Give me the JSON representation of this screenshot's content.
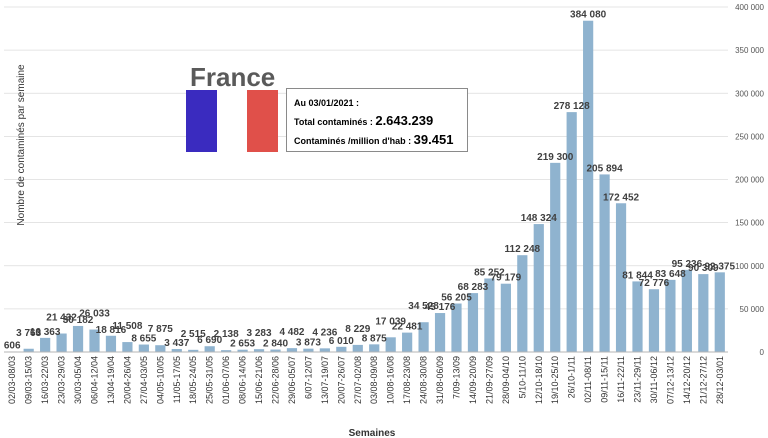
{
  "header": {
    "country": "France"
  },
  "info_box": {
    "date_line": "Au 03/01/2021 :",
    "total_label": "Total contaminés : ",
    "total_value": "2.643.239",
    "per_million_label": "Contaminés /million d'hab : ",
    "per_million_value": "39.451"
  },
  "colors": {
    "bar": "#8fb3cf",
    "flag_blue": "#3a2bbf",
    "flag_red": "#e0504a"
  },
  "chart_data": {
    "type": "bar",
    "title": "",
    "xlabel": "Semaines",
    "ylabel": "Nombre de contaminés par semaine",
    "ylim": [
      0,
      400000
    ],
    "yticks": [
      "0",
      "50 000",
      "100 000",
      "150 000",
      "200 000",
      "250 000",
      "300 000",
      "350 000",
      "400 000"
    ],
    "categories": [
      "02/03-08/03",
      "09/03-15/03",
      "16/03-22/03",
      "23/03-29/03",
      "30/03-05/04",
      "06/04-12/04",
      "13/04-19/04",
      "20/04-26/04",
      "27/04-03/05",
      "04/05-10/05",
      "11/05-17/05",
      "18/05-24/05",
      "25/05-31/05",
      "01/06-07/06",
      "08/06-14/06",
      "15/06-21/06",
      "22/06-28/06",
      "29/06-05/07",
      "6/07-12/07",
      "13/07-19/07",
      "20/07-26/07",
      "27/07-02/08",
      "03/08-09/08",
      "10/08-16/08",
      "17/08-23/08",
      "24/08-30/08",
      "31/08-06/09",
      "7/09-13/09",
      "14/09-20/09",
      "21/09-27/09",
      "28/09-04/10",
      "5/10-11/10",
      "12/10-18/10",
      "19/10-25/10",
      "26/10-1/11",
      "02/11-08/11",
      "09/11-15/11",
      "16/11-22/11",
      "23/11-29/11",
      "30/11-06/12",
      "07/12-13/12",
      "14/12-20/12",
      "21/12-27/12",
      "28/12-03/01"
    ],
    "values": [
      606,
      3763,
      16363,
      21432,
      30182,
      26033,
      18816,
      11508,
      8655,
      7875,
      3437,
      2515,
      6690,
      2138,
      2653,
      3283,
      2840,
      4482,
      3873,
      4236,
      6010,
      8229,
      8875,
      17039,
      22481,
      34528,
      45176,
      56205,
      68283,
      85252,
      79179,
      112248,
      148324,
      219300,
      278128,
      384080,
      205894,
      172452,
      81844,
      72776,
      83648,
      95236,
      90309,
      92375
    ],
    "data_labels": [
      "606",
      "3 763",
      "16 363",
      "21 432",
      "30 182",
      "26 033",
      "18 816",
      "11 508",
      "8 655",
      "7 875",
      "3 437",
      "2 515",
      "6 690",
      "2 138",
      "2 653",
      "3 283",
      "2 840",
      "4 482",
      "3 873",
      "4 236",
      "6 010",
      "8 229",
      "8 875",
      "17 039",
      "22 481",
      "34 528",
      "45 176",
      "56 205",
      "68 283",
      "85 252",
      "79 179",
      "112 248",
      "148 324",
      "219 300",
      "278 128",
      "384 080",
      "205 894",
      "172 452",
      "81 844",
      "72 776",
      "83 648",
      "95 236",
      "90 309",
      "92 375"
    ],
    "grid": true,
    "legend": "none"
  }
}
